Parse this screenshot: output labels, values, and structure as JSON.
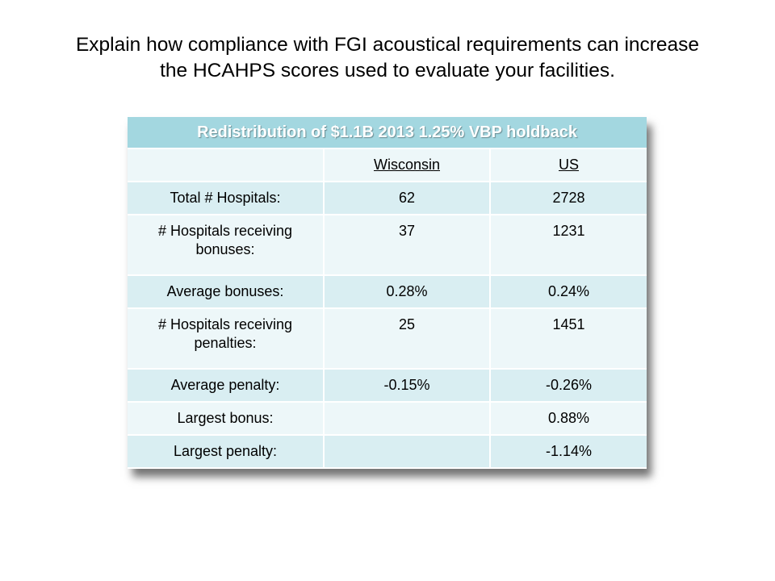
{
  "slide": {
    "title_line1": "Explain how compliance with FGI acoustical requirements can increase",
    "title_line2": "the HCAHPS scores used to evaluate your facilities."
  },
  "table": {
    "caption": "Redistribution of $1.1B 2013 1.25% VBP holdback",
    "header": [
      "",
      "Wisconsin",
      "US"
    ],
    "rows": [
      [
        "Total # Hospitals:",
        "62",
        "2728"
      ],
      [
        "# Hospitals receiving bonuses:",
        "37",
        "1231"
      ],
      [
        "Average bonuses:",
        "0.28%",
        "0.24%"
      ],
      [
        "# Hospitals receiving penalties:",
        "25",
        "1451"
      ],
      [
        "Average penalty:",
        "-0.15%",
        "-0.26%"
      ],
      [
        "Largest bonus:",
        "",
        "0.88%"
      ],
      [
        "Largest penalty:",
        "",
        "-1.14%"
      ]
    ]
  },
  "colors": {
    "header_bg": "#a3d7e0",
    "row_dark": "#d9eef2",
    "row_light": "#edf7f9"
  }
}
